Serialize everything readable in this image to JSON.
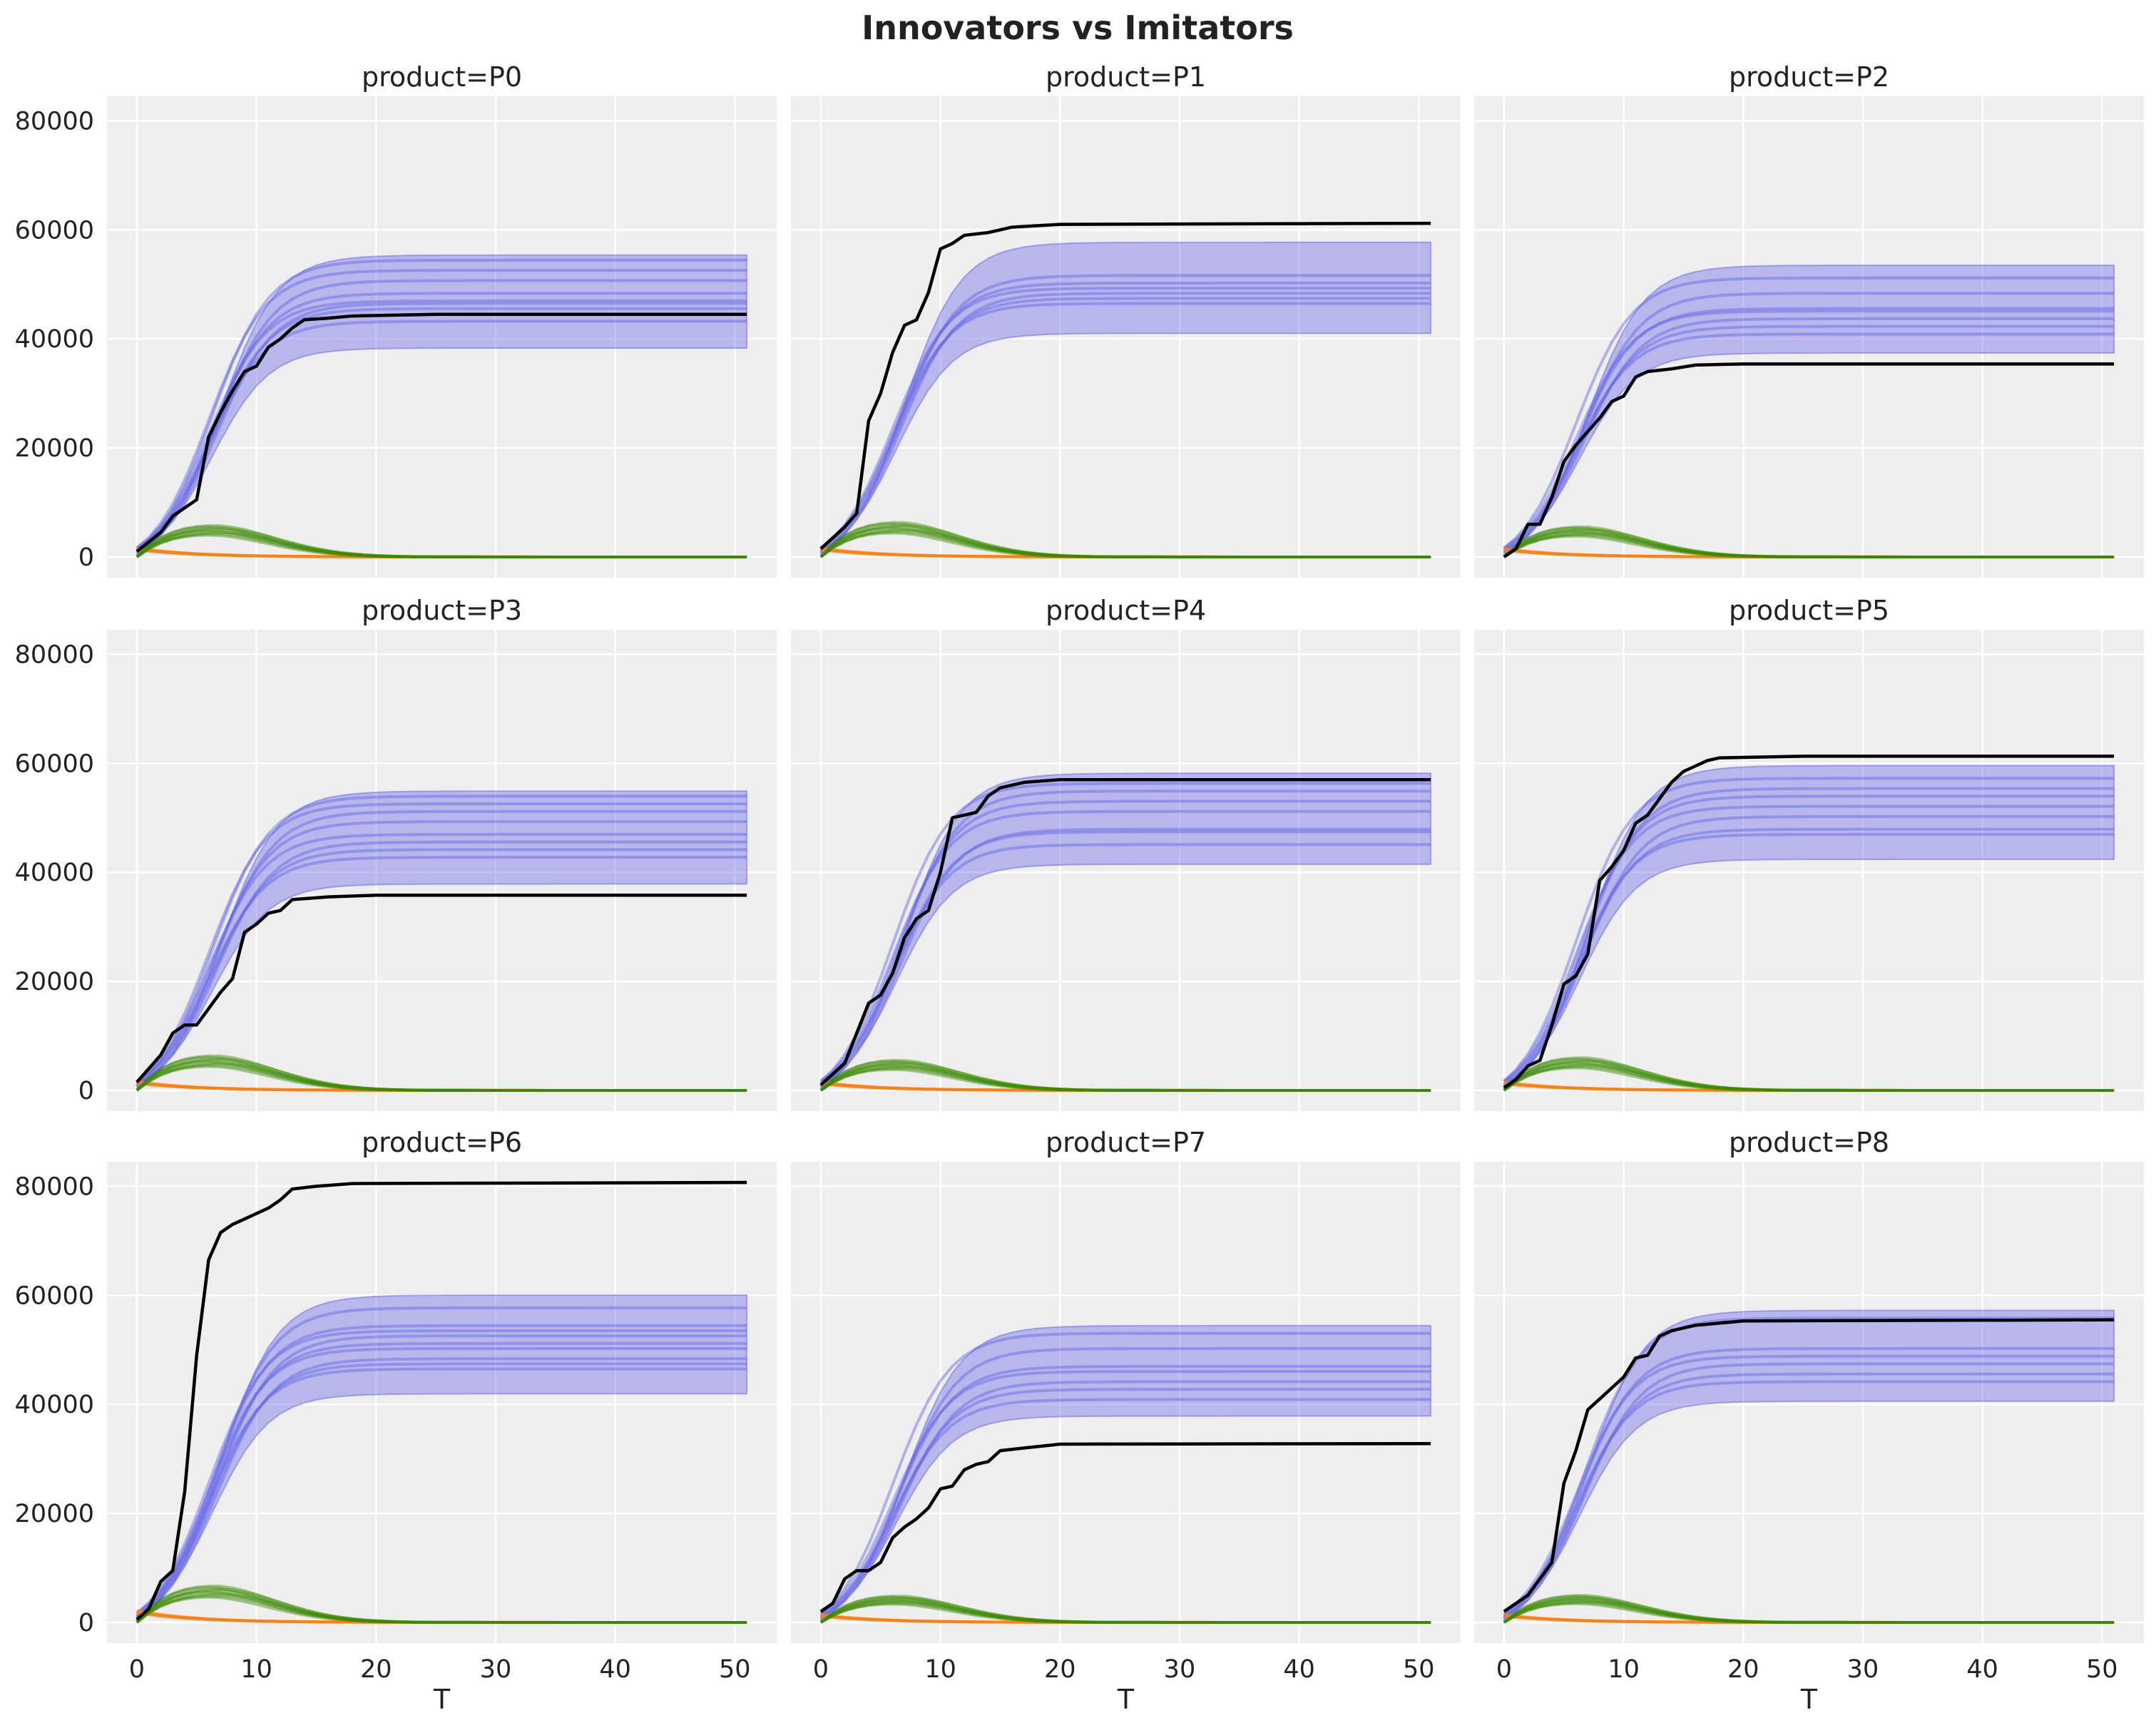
{
  "chart_data": {
    "type": "line",
    "title": "Innovators vs Imitators",
    "xlabel": "T",
    "ylabel": "",
    "xlim": [
      -2.5,
      53.5
    ],
    "ylim": [
      -3800,
      84500
    ],
    "x_ticks": [
      0,
      10,
      20,
      30,
      40,
      50
    ],
    "y_ticks": [
      0,
      20000,
      40000,
      60000,
      80000
    ],
    "grid": true,
    "colors": {
      "posterior": "#6464e6",
      "observed": "#000000",
      "innovators": "#ff7f0e",
      "imitators": "#3a8a00",
      "background": "#eeeeee"
    },
    "panels": [
      {
        "title": "product=P0",
        "band": [
          41000,
          58000
        ],
        "samples": [
          45000,
          47500,
          48500,
          49000,
          50500,
          53000,
          55000,
          57000
        ],
        "imitators_peak": 5000,
        "innovators_start": 1500,
        "observed": [
          [
            0,
            1000
          ],
          [
            2,
            4500
          ],
          [
            3,
            7500
          ],
          [
            5,
            10500
          ],
          [
            6,
            22000
          ],
          [
            7,
            26500
          ],
          [
            8,
            30500
          ],
          [
            9,
            34000
          ],
          [
            10,
            35000
          ],
          [
            11,
            38500
          ],
          [
            12,
            40000
          ],
          [
            13,
            42000
          ],
          [
            14,
            43500
          ],
          [
            16,
            43800
          ],
          [
            18,
            44200
          ],
          [
            25,
            44500
          ],
          [
            51,
            44500
          ]
        ]
      },
      {
        "title": "product=P1",
        "band": [
          44000,
          60500
        ],
        "samples": [
          48500,
          49500,
          50500,
          51500,
          52500,
          54000
        ],
        "imitators_peak": 5500,
        "innovators_start": 1500,
        "observed": [
          [
            0,
            1500
          ],
          [
            1,
            3500
          ],
          [
            2,
            5500
          ],
          [
            3,
            8000
          ],
          [
            4,
            25000
          ],
          [
            5,
            30000
          ],
          [
            6,
            37500
          ],
          [
            7,
            42500
          ],
          [
            8,
            43500
          ],
          [
            9,
            48500
          ],
          [
            10,
            56500
          ],
          [
            11,
            57500
          ],
          [
            12,
            59000
          ],
          [
            14,
            59500
          ],
          [
            16,
            60500
          ],
          [
            20,
            61000
          ],
          [
            51,
            61200
          ]
        ]
      },
      {
        "title": "product=P2",
        "band": [
          40000,
          56000
        ],
        "samples": [
          42500,
          44000,
          45500,
          47000,
          47500,
          50500,
          53500
        ],
        "imitators_peak": 4800,
        "innovators_start": 1400,
        "observed": [
          [
            0,
            0
          ],
          [
            1,
            1500
          ],
          [
            2,
            6000
          ],
          [
            3,
            6000
          ],
          [
            4,
            11000
          ],
          [
            5,
            17500
          ],
          [
            6,
            20500
          ],
          [
            7,
            23000
          ],
          [
            8,
            25500
          ],
          [
            9,
            28500
          ],
          [
            10,
            29500
          ],
          [
            11,
            33000
          ],
          [
            12,
            34000
          ],
          [
            14,
            34500
          ],
          [
            16,
            35200
          ],
          [
            20,
            35400
          ],
          [
            51,
            35400
          ]
        ]
      },
      {
        "title": "product=P3",
        "band": [
          40500,
          57500
        ],
        "samples": [
          44500,
          46000,
          47500,
          49000,
          51500,
          53500,
          55000,
          56500
        ],
        "imitators_peak": 5500,
        "innovators_start": 1500,
        "observed": [
          [
            0,
            1500
          ],
          [
            1,
            4000
          ],
          [
            2,
            6500
          ],
          [
            3,
            10500
          ],
          [
            4,
            12000
          ],
          [
            5,
            12000
          ],
          [
            6,
            15000
          ],
          [
            7,
            18000
          ],
          [
            8,
            20500
          ],
          [
            9,
            29000
          ],
          [
            10,
            30500
          ],
          [
            11,
            32500
          ],
          [
            12,
            33000
          ],
          [
            13,
            35000
          ],
          [
            16,
            35500
          ],
          [
            20,
            35800
          ],
          [
            51,
            35800
          ]
        ]
      },
      {
        "title": "product=P4",
        "band": [
          44500,
          61000
        ],
        "samples": [
          47000,
          49500,
          50000,
          53500,
          55500,
          57500,
          59000
        ],
        "imitators_peak": 4800,
        "innovators_start": 1400,
        "observed": [
          [
            0,
            1000
          ],
          [
            2,
            5000
          ],
          [
            3,
            10500
          ],
          [
            4,
            16000
          ],
          [
            5,
            17500
          ],
          [
            6,
            21500
          ],
          [
            7,
            28000
          ],
          [
            8,
            31500
          ],
          [
            9,
            33000
          ],
          [
            10,
            40000
          ],
          [
            11,
            50000
          ],
          [
            12,
            50500
          ],
          [
            13,
            51000
          ],
          [
            14,
            54000
          ],
          [
            15,
            55500
          ],
          [
            17,
            56500
          ],
          [
            20,
            57000
          ],
          [
            51,
            57000
          ]
        ]
      },
      {
        "title": "product=P5",
        "band": [
          45500,
          62500
        ],
        "samples": [
          49000,
          50000,
          52500,
          54500,
          56500,
          58000,
          60000
        ],
        "imitators_peak": 5200,
        "innovators_start": 1400,
        "observed": [
          [
            0,
            500
          ],
          [
            1,
            2000
          ],
          [
            2,
            4500
          ],
          [
            3,
            5500
          ],
          [
            4,
            12000
          ],
          [
            5,
            19500
          ],
          [
            6,
            21000
          ],
          [
            7,
            25000
          ],
          [
            8,
            38500
          ],
          [
            9,
            41000
          ],
          [
            10,
            44000
          ],
          [
            11,
            49000
          ],
          [
            12,
            50500
          ],
          [
            13,
            53500
          ],
          [
            14,
            56500
          ],
          [
            15,
            58500
          ],
          [
            16,
            59500
          ],
          [
            17,
            60500
          ],
          [
            18,
            61000
          ],
          [
            25,
            61300
          ],
          [
            51,
            61300
          ]
        ]
      },
      {
        "title": "product=P6",
        "band": [
          45000,
          63000
        ],
        "samples": [
          48500,
          49500,
          50500,
          52500,
          53500,
          55000,
          56000,
          57000,
          60500
        ],
        "imitators_peak": 5800,
        "innovators_start": 2000,
        "observed": [
          [
            0,
            500
          ],
          [
            1,
            2500
          ],
          [
            2,
            7500
          ],
          [
            3,
            9500
          ],
          [
            4,
            24000
          ],
          [
            5,
            49000
          ],
          [
            6,
            66500
          ],
          [
            7,
            71500
          ],
          [
            8,
            73000
          ],
          [
            9,
            74000
          ],
          [
            10,
            75000
          ],
          [
            11,
            76000
          ],
          [
            12,
            77500
          ],
          [
            13,
            79500
          ],
          [
            15,
            80000
          ],
          [
            18,
            80500
          ],
          [
            51,
            80700
          ]
        ]
      },
      {
        "title": "product=P7",
        "band": [
          40500,
          57000
        ],
        "samples": [
          42500,
          44500,
          46000,
          48000,
          49000,
          52500,
          55500
        ],
        "imitators_peak": 4200,
        "innovators_start": 1300,
        "observed": [
          [
            0,
            2000
          ],
          [
            1,
            3500
          ],
          [
            2,
            8000
          ],
          [
            3,
            9500
          ],
          [
            4,
            9500
          ],
          [
            5,
            11000
          ],
          [
            6,
            15500
          ],
          [
            7,
            17500
          ],
          [
            8,
            19000
          ],
          [
            9,
            21000
          ],
          [
            10,
            24500
          ],
          [
            11,
            25000
          ],
          [
            12,
            28000
          ],
          [
            13,
            29000
          ],
          [
            14,
            29500
          ],
          [
            15,
            31500
          ],
          [
            17,
            32000
          ],
          [
            20,
            32700
          ],
          [
            51,
            32800
          ]
        ]
      },
      {
        "title": "product=P8",
        "band": [
          43500,
          60000
        ],
        "samples": [
          46000,
          47500,
          49500,
          51000,
          52500,
          58500
        ],
        "imitators_peak": 4300,
        "innovators_start": 1300,
        "observed": [
          [
            0,
            2000
          ],
          [
            1,
            3500
          ],
          [
            2,
            5000
          ],
          [
            3,
            8000
          ],
          [
            4,
            11000
          ],
          [
            5,
            25500
          ],
          [
            6,
            31500
          ],
          [
            7,
            39000
          ],
          [
            8,
            41000
          ],
          [
            9,
            43000
          ],
          [
            10,
            45000
          ],
          [
            11,
            48500
          ],
          [
            12,
            49000
          ],
          [
            13,
            52500
          ],
          [
            14,
            53500
          ],
          [
            16,
            54500
          ],
          [
            20,
            55300
          ],
          [
            51,
            55500
          ]
        ]
      }
    ]
  }
}
